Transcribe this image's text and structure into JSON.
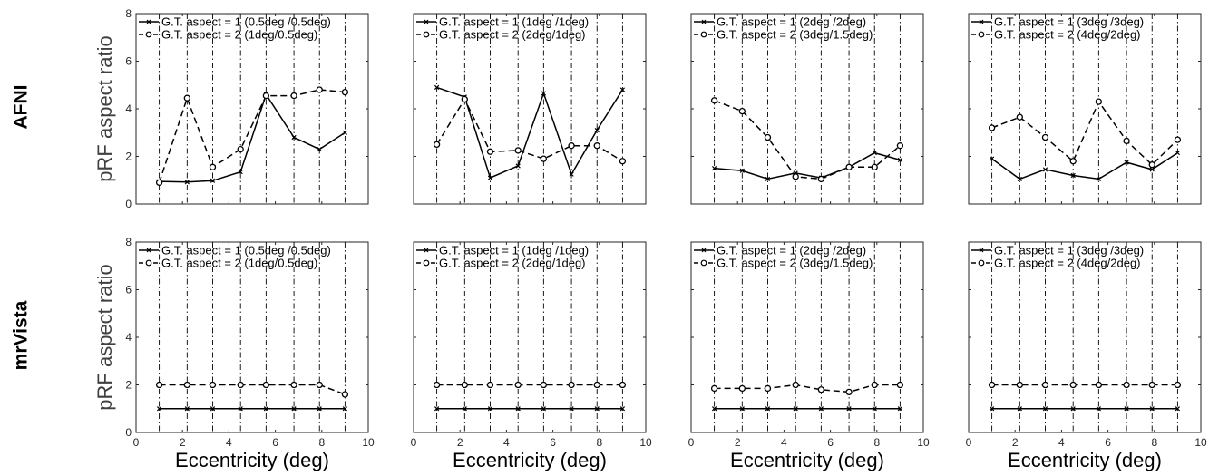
{
  "row_labels": [
    "AFNI",
    "mrVista"
  ],
  "chart_data": [
    {
      "type": "line",
      "row": 0,
      "col": 0,
      "row_label": "AFNI",
      "ylabel": "pRF aspect ratio",
      "xlabel": "",
      "xlim": [
        0,
        10
      ],
      "ylim": [
        0,
        8
      ],
      "xticks": [],
      "yticks": [
        "0",
        "2",
        "4",
        "6",
        "8"
      ],
      "vlines": [
        1,
        2.2,
        3.3,
        4.5,
        5.6,
        6.8,
        7.9,
        9
      ],
      "series": [
        {
          "name": "G.T. aspect = 1 (0.5deg /0.5deg)",
          "style": "solid",
          "marker": "x",
          "x": [
            1,
            2.2,
            3.3,
            4.5,
            5.6,
            6.8,
            7.9,
            9
          ],
          "y": [
            0.95,
            0.92,
            0.98,
            1.35,
            4.6,
            2.8,
            2.3,
            3.0
          ]
        },
        {
          "name": "G.T. aspect = 2 (1deg/0.5deg)",
          "style": "dashed",
          "marker": "o",
          "x": [
            1,
            2.2,
            3.3,
            4.5,
            5.6,
            6.8,
            7.9,
            9
          ],
          "y": [
            0.9,
            4.45,
            1.55,
            2.3,
            4.55,
            4.55,
            4.8,
            4.7
          ]
        }
      ]
    },
    {
      "type": "line",
      "row": 0,
      "col": 1,
      "row_label": "AFNI",
      "ylabel": "",
      "xlabel": "",
      "xlim": [
        0,
        10
      ],
      "ylim": [
        0,
        8
      ],
      "xticks": [],
      "yticks": [],
      "vlines": [
        1,
        2.2,
        3.3,
        4.5,
        5.6,
        6.8,
        7.9,
        9
      ],
      "series": [
        {
          "name": "G.T. aspect = 1 (1deg /1deg)",
          "style": "solid",
          "marker": "x",
          "x": [
            1,
            2.2,
            3.3,
            4.5,
            5.6,
            6.8,
            7.9,
            9
          ],
          "y": [
            4.9,
            4.5,
            1.1,
            1.6,
            4.65,
            1.25,
            3.1,
            4.8
          ]
        },
        {
          "name": "G.T. aspect = 2 (2deg/1deg)",
          "style": "dashed",
          "marker": "o",
          "x": [
            1,
            2.2,
            3.3,
            4.5,
            5.6,
            6.8,
            7.9,
            9
          ],
          "y": [
            2.5,
            4.4,
            2.2,
            2.25,
            1.9,
            2.45,
            2.45,
            1.8
          ]
        }
      ]
    },
    {
      "type": "line",
      "row": 0,
      "col": 2,
      "row_label": "AFNI",
      "ylabel": "",
      "xlabel": "",
      "xlim": [
        0,
        10
      ],
      "ylim": [
        0,
        8
      ],
      "xticks": [],
      "yticks": [],
      "vlines": [
        1,
        2.2,
        3.3,
        4.5,
        5.6,
        6.8,
        7.9,
        9
      ],
      "series": [
        {
          "name": "G.T. aspect = 1 (2deg /2deg)",
          "style": "solid",
          "marker": "x",
          "x": [
            1,
            2.2,
            3.3,
            4.5,
            5.6,
            6.8,
            7.9,
            9
          ],
          "y": [
            1.5,
            1.4,
            1.05,
            1.3,
            1.1,
            1.55,
            2.15,
            1.85
          ]
        },
        {
          "name": "G.T. aspect = 2 (3deg/1.5deg)",
          "style": "dashed",
          "marker": "o",
          "x": [
            1,
            2.2,
            3.3,
            4.5,
            5.6,
            6.8,
            7.9,
            9
          ],
          "y": [
            4.35,
            3.9,
            2.8,
            1.15,
            1.05,
            1.55,
            1.55,
            2.45
          ]
        }
      ]
    },
    {
      "type": "line",
      "row": 0,
      "col": 3,
      "row_label": "AFNI",
      "ylabel": "",
      "xlabel": "",
      "xlim": [
        0,
        10
      ],
      "ylim": [
        0,
        8
      ],
      "xticks": [],
      "yticks": [],
      "vlines": [
        1,
        2.2,
        3.3,
        4.5,
        5.6,
        6.8,
        7.9,
        9
      ],
      "series": [
        {
          "name": "G.T. aspect = 1 (3deg /3deg)",
          "style": "solid",
          "marker": "x",
          "x": [
            1,
            2.2,
            3.3,
            4.5,
            5.6,
            6.8,
            7.9,
            9
          ],
          "y": [
            1.9,
            1.05,
            1.45,
            1.2,
            1.05,
            1.75,
            1.45,
            2.15
          ]
        },
        {
          "name": "G.T. aspect = 2 (4deg/2deg)",
          "style": "dashed",
          "marker": "o",
          "x": [
            1,
            2.2,
            3.3,
            4.5,
            5.6,
            6.8,
            7.9,
            9
          ],
          "y": [
            3.2,
            3.65,
            2.8,
            1.8,
            4.3,
            2.65,
            1.65,
            2.7
          ]
        }
      ]
    },
    {
      "type": "line",
      "row": 1,
      "col": 0,
      "row_label": "mrVista",
      "ylabel": "pRF aspect ratio",
      "xlabel": "Eccentricity (deg)",
      "xlim": [
        0,
        10
      ],
      "ylim": [
        0,
        8
      ],
      "xticks": [
        "0",
        "2",
        "4",
        "6",
        "8",
        "10"
      ],
      "yticks": [
        "0",
        "2",
        "4",
        "6",
        "8"
      ],
      "vlines": [
        1,
        2.2,
        3.3,
        4.5,
        5.6,
        6.8,
        7.9,
        9
      ],
      "series": [
        {
          "name": "G.T. aspect = 1 (0.5deg /0.5deg)",
          "style": "solid",
          "marker": "x",
          "x": [
            1,
            2.2,
            3.3,
            4.5,
            5.6,
            6.8,
            7.9,
            9
          ],
          "y": [
            1,
            1,
            1,
            1,
            1,
            1,
            1,
            1
          ]
        },
        {
          "name": "G.T. aspect = 2 (1deg/0.5deg)",
          "style": "dashed",
          "marker": "o",
          "x": [
            1,
            2.2,
            3.3,
            4.5,
            5.6,
            6.8,
            7.9,
            9
          ],
          "y": [
            2,
            2,
            2,
            2,
            2,
            2,
            2,
            1.6
          ]
        }
      ]
    },
    {
      "type": "line",
      "row": 1,
      "col": 1,
      "row_label": "mrVista",
      "ylabel": "",
      "xlabel": "Eccentricity (deg)",
      "xlim": [
        0,
        10
      ],
      "ylim": [
        0,
        8
      ],
      "xticks": [
        "0",
        "2",
        "4",
        "6",
        "8",
        "10"
      ],
      "yticks": [],
      "vlines": [
        1,
        2.2,
        3.3,
        4.5,
        5.6,
        6.8,
        7.9,
        9
      ],
      "series": [
        {
          "name": "G.T. aspect = 1 (1deg /1deg)",
          "style": "solid",
          "marker": "x",
          "x": [
            1,
            2.2,
            3.3,
            4.5,
            5.6,
            6.8,
            7.9,
            9
          ],
          "y": [
            1,
            1,
            1,
            1,
            1,
            1,
            1,
            1
          ]
        },
        {
          "name": "G.T. aspect = 2 (2deg/1deg)",
          "style": "dashed",
          "marker": "o",
          "x": [
            1,
            2.2,
            3.3,
            4.5,
            5.6,
            6.8,
            7.9,
            9
          ],
          "y": [
            2,
            2,
            2,
            2,
            2,
            2,
            2,
            2
          ]
        }
      ]
    },
    {
      "type": "line",
      "row": 1,
      "col": 2,
      "row_label": "mrVista",
      "ylabel": "",
      "xlabel": "Eccentricity (deg)",
      "xlim": [
        0,
        10
      ],
      "ylim": [
        0,
        8
      ],
      "xticks": [
        "0",
        "2",
        "4",
        "6",
        "8",
        "10"
      ],
      "yticks": [],
      "vlines": [
        1,
        2.2,
        3.3,
        4.5,
        5.6,
        6.8,
        7.9,
        9
      ],
      "series": [
        {
          "name": "G.T. aspect = 1 (2deg /2deg)",
          "style": "solid",
          "marker": "x",
          "x": [
            1,
            2.2,
            3.3,
            4.5,
            5.6,
            6.8,
            7.9,
            9
          ],
          "y": [
            1,
            1,
            1,
            1,
            1,
            1,
            1,
            1
          ]
        },
        {
          "name": "G.T. aspect = 2 (3deg/1.5deg)",
          "style": "dashed",
          "marker": "o",
          "x": [
            1,
            2.2,
            3.3,
            4.5,
            5.6,
            6.8,
            7.9,
            9
          ],
          "y": [
            1.85,
            1.85,
            1.85,
            2,
            1.8,
            1.7,
            2,
            2
          ]
        }
      ]
    },
    {
      "type": "line",
      "row": 1,
      "col": 3,
      "row_label": "mrVista",
      "ylabel": "",
      "xlabel": "Eccentricity (deg)",
      "xlim": [
        0,
        10
      ],
      "ylim": [
        0,
        8
      ],
      "xticks": [
        "0",
        "2",
        "4",
        "6",
        "8",
        "10"
      ],
      "yticks": [],
      "vlines": [
        1,
        2.2,
        3.3,
        4.5,
        5.6,
        6.8,
        7.9,
        9
      ],
      "series": [
        {
          "name": "G.T. aspect = 1 (3deg /3deg)",
          "style": "solid",
          "marker": "x",
          "x": [
            1,
            2.2,
            3.3,
            4.5,
            5.6,
            6.8,
            7.9,
            9
          ],
          "y": [
            1,
            1,
            1,
            1,
            1,
            1,
            1,
            1
          ]
        },
        {
          "name": "G.T. aspect = 2 (4deg/2deg)",
          "style": "dashed",
          "marker": "o",
          "x": [
            1,
            2.2,
            3.3,
            4.5,
            5.6,
            6.8,
            7.9,
            9
          ],
          "y": [
            2,
            2,
            2,
            2,
            2,
            2,
            2,
            2
          ]
        }
      ]
    }
  ]
}
